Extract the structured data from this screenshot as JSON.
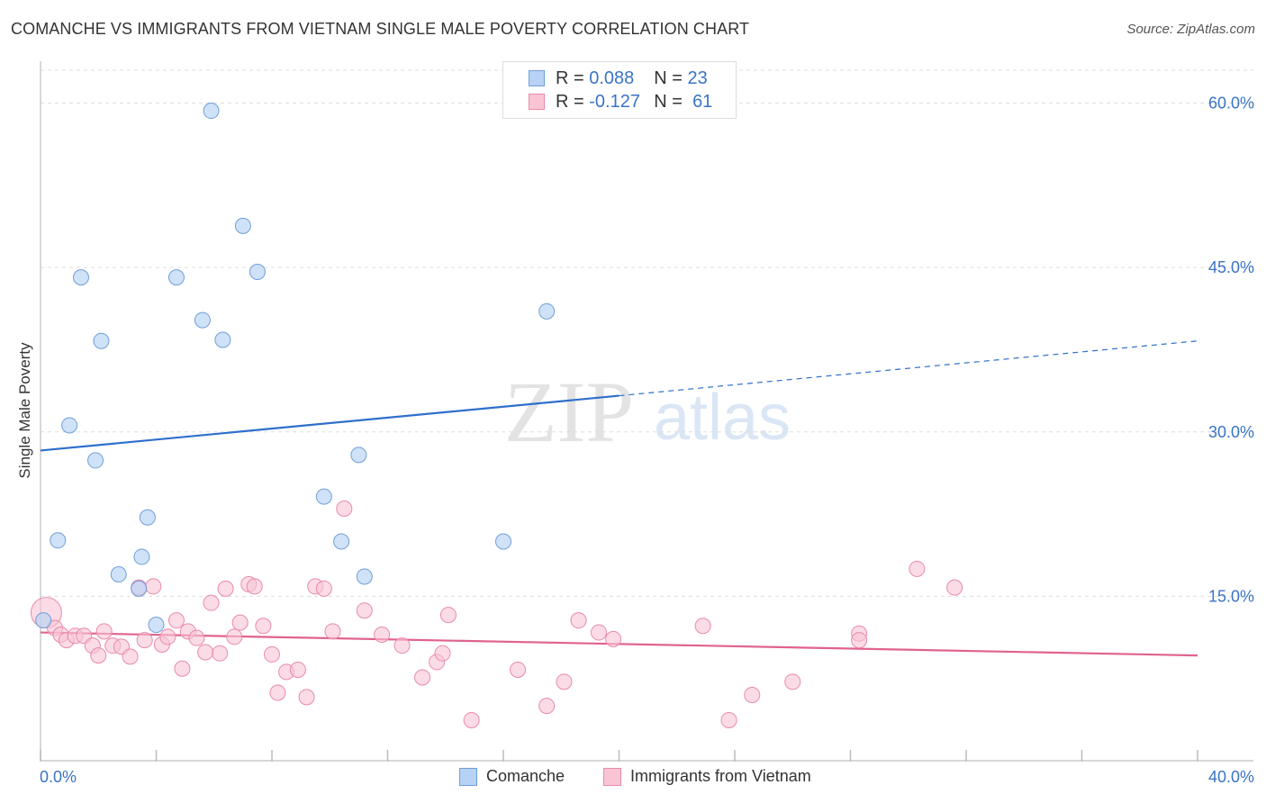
{
  "title": "COMANCHE VS IMMIGRANTS FROM VIETNAM SINGLE MALE POVERTY CORRELATION CHART",
  "source": "Source: ZipAtlas.com",
  "watermark": {
    "zip": "ZIP",
    "atlas": "atlas"
  },
  "stats": [
    {
      "r_label": "R =",
      "r_value": "0.088",
      "n_label": "N =",
      "n_value": "23"
    },
    {
      "r_label": "R =",
      "r_value": "-0.127",
      "n_label": "N =",
      "n_value": "61"
    }
  ],
  "colors": {
    "comanche_fill": "#b7d2f4",
    "comanche_stroke": "#6f9fd8",
    "comanche_line": "#2f6fcc",
    "vietnam_fill": "#f9c5d5",
    "vietnam_stroke": "#e98aa8",
    "vietnam_line": "#e0638d",
    "tick_text": "#3a74c5",
    "grid": "#dddddd"
  },
  "chart_data": {
    "type": "scatter",
    "title": "COMANCHE VS IMMIGRANTS FROM VIETNAM SINGLE MALE POVERTY CORRELATION CHART",
    "xlabel": "",
    "ylabel": "Single Male Poverty",
    "xlim": [
      0,
      40
    ],
    "ylim": [
      0,
      63
    ],
    "x_tick_labels": [
      "0.0%",
      "40.0%"
    ],
    "y_ticks": [
      15,
      30,
      45,
      60
    ],
    "y_tick_labels": [
      "15.0%",
      "30.0%",
      "45.0%",
      "60.0%"
    ],
    "grid": true,
    "legend_position": "bottom-center",
    "series": [
      {
        "name": "Comanche",
        "r": 0.088,
        "n": 23,
        "points": [
          [
            0.1,
            12.8
          ],
          [
            0.6,
            20.1
          ],
          [
            1.0,
            30.6
          ],
          [
            1.4,
            44.1
          ],
          [
            1.9,
            27.4
          ],
          [
            2.1,
            38.3
          ],
          [
            2.7,
            17.0
          ],
          [
            3.4,
            15.7
          ],
          [
            3.5,
            18.6
          ],
          [
            3.7,
            22.2
          ],
          [
            4.0,
            12.4
          ],
          [
            4.7,
            44.1
          ],
          [
            5.6,
            40.2
          ],
          [
            5.9,
            59.3
          ],
          [
            6.3,
            38.4
          ],
          [
            7.0,
            48.8
          ],
          [
            7.5,
            44.6
          ],
          [
            9.8,
            24.1
          ],
          [
            10.4,
            20.0
          ],
          [
            11.0,
            27.9
          ],
          [
            11.2,
            16.8
          ],
          [
            16.0,
            20.0
          ],
          [
            17.5,
            41.0
          ]
        ],
        "trend": {
          "x_start": 0,
          "y_start": 28.3,
          "x_solid_end": 20.0,
          "y_solid_end": 33.3,
          "x_end": 40,
          "y_end": 38.3
        }
      },
      {
        "name": "Immigrants from Vietnam",
        "r": -0.127,
        "n": 61,
        "points": [
          [
            0.2,
            13.5
          ],
          [
            0.5,
            12.1
          ],
          [
            0.7,
            11.5
          ],
          [
            0.9,
            11.0
          ],
          [
            1.2,
            11.4
          ],
          [
            1.5,
            11.4
          ],
          [
            1.8,
            10.5
          ],
          [
            2.0,
            9.6
          ],
          [
            2.2,
            11.8
          ],
          [
            2.5,
            10.5
          ],
          [
            2.8,
            10.4
          ],
          [
            3.1,
            9.5
          ],
          [
            3.4,
            15.8
          ],
          [
            3.6,
            11.0
          ],
          [
            3.9,
            15.9
          ],
          [
            4.2,
            10.6
          ],
          [
            4.4,
            11.3
          ],
          [
            4.7,
            12.8
          ],
          [
            4.9,
            8.4
          ],
          [
            5.1,
            11.8
          ],
          [
            5.4,
            11.2
          ],
          [
            5.7,
            9.9
          ],
          [
            5.9,
            14.4
          ],
          [
            6.2,
            9.8
          ],
          [
            6.4,
            15.7
          ],
          [
            6.7,
            11.3
          ],
          [
            6.9,
            12.6
          ],
          [
            7.2,
            16.1
          ],
          [
            7.4,
            15.9
          ],
          [
            7.7,
            12.3
          ],
          [
            8.0,
            9.7
          ],
          [
            8.2,
            6.2
          ],
          [
            8.5,
            8.1
          ],
          [
            8.9,
            8.3
          ],
          [
            9.2,
            5.8
          ],
          [
            9.5,
            15.9
          ],
          [
            9.8,
            15.7
          ],
          [
            10.1,
            11.8
          ],
          [
            10.5,
            23.0
          ],
          [
            11.2,
            13.7
          ],
          [
            11.8,
            11.5
          ],
          [
            12.5,
            10.5
          ],
          [
            13.2,
            7.6
          ],
          [
            13.7,
            9.0
          ],
          [
            13.9,
            9.8
          ],
          [
            14.1,
            13.3
          ],
          [
            14.9,
            3.7
          ],
          [
            16.5,
            8.3
          ],
          [
            17.5,
            5.0
          ],
          [
            18.1,
            7.2
          ],
          [
            18.6,
            12.8
          ],
          [
            19.3,
            11.7
          ],
          [
            19.8,
            11.1
          ],
          [
            22.9,
            12.3
          ],
          [
            23.8,
            3.7
          ],
          [
            24.6,
            6.0
          ],
          [
            26.0,
            7.2
          ],
          [
            28.3,
            11.6
          ],
          [
            28.3,
            11.0
          ],
          [
            30.3,
            17.5
          ],
          [
            31.6,
            15.8
          ]
        ],
        "trend": {
          "x_start": 0,
          "y_start": 11.7,
          "x_end": 40,
          "y_end": 9.6
        }
      }
    ]
  }
}
